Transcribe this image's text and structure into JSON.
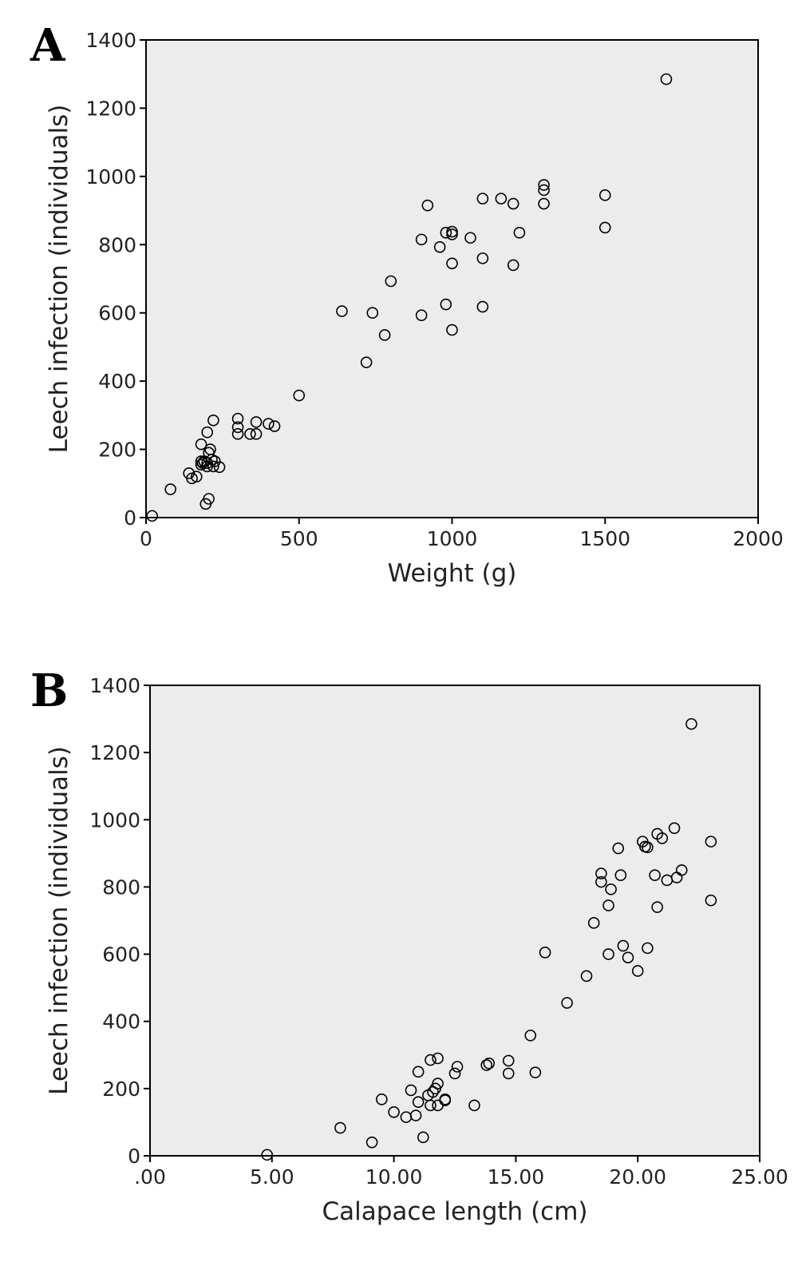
{
  "chart_data": [
    {
      "type": "scatter",
      "panel_label": "A",
      "xlabel": "Weight (g)",
      "ylabel": "Leech infection (individuals)",
      "xlim": [
        0,
        2000
      ],
      "ylim": [
        0,
        1400
      ],
      "xticks": [
        0,
        500,
        1000,
        1500,
        2000
      ],
      "xtick_labels": [
        "0",
        "500",
        "1000",
        "1500",
        "2000"
      ],
      "yticks": [
        0,
        200,
        400,
        600,
        800,
        1000,
        1200,
        1400
      ],
      "ytick_labels": [
        "0",
        "200",
        "400",
        "600",
        "800",
        "1000",
        "1200",
        "1400"
      ],
      "grid": false,
      "points": [
        [
          20,
          5
        ],
        [
          80,
          83
        ],
        [
          140,
          130
        ],
        [
          150,
          115
        ],
        [
          165,
          120
        ],
        [
          180,
          215
        ],
        [
          180,
          165
        ],
        [
          180,
          155
        ],
        [
          185,
          160
        ],
        [
          190,
          165
        ],
        [
          195,
          40
        ],
        [
          200,
          160
        ],
        [
          200,
          150
        ],
        [
          200,
          250
        ],
        [
          205,
          190
        ],
        [
          205,
          55
        ],
        [
          210,
          200
        ],
        [
          215,
          170
        ],
        [
          220,
          285
        ],
        [
          220,
          150
        ],
        [
          225,
          165
        ],
        [
          240,
          148
        ],
        [
          300,
          290
        ],
        [
          300,
          265
        ],
        [
          300,
          245
        ],
        [
          340,
          245
        ],
        [
          360,
          245
        ],
        [
          360,
          280
        ],
        [
          400,
          275
        ],
        [
          420,
          268
        ],
        [
          500,
          358
        ],
        [
          640,
          605
        ],
        [
          720,
          455
        ],
        [
          740,
          600
        ],
        [
          780,
          535
        ],
        [
          800,
          693
        ],
        [
          900,
          593
        ],
        [
          900,
          815
        ],
        [
          920,
          915
        ],
        [
          960,
          793
        ],
        [
          980,
          625
        ],
        [
          980,
          835
        ],
        [
          1000,
          830
        ],
        [
          1000,
          838
        ],
        [
          1000,
          745
        ],
        [
          1000,
          550
        ],
        [
          1060,
          820
        ],
        [
          1100,
          935
        ],
        [
          1100,
          760
        ],
        [
          1100,
          618
        ],
        [
          1160,
          935
        ],
        [
          1200,
          920
        ],
        [
          1200,
          740
        ],
        [
          1220,
          835
        ],
        [
          1300,
          975
        ],
        [
          1300,
          960
        ],
        [
          1300,
          920
        ],
        [
          1500,
          945
        ],
        [
          1500,
          850
        ],
        [
          1700,
          1285
        ]
      ]
    },
    {
      "type": "scatter",
      "panel_label": "B",
      "xlabel": "Calapace length (cm)",
      "ylabel": "Leech infection (individuals)",
      "xlim": [
        0,
        25
      ],
      "ylim": [
        0,
        1400
      ],
      "xticks": [
        0,
        5,
        10,
        15,
        20,
        25
      ],
      "xtick_labels": [
        ".00",
        "5.00",
        "10.00",
        "15.00",
        "20.00",
        "25.00"
      ],
      "yticks": [
        0,
        200,
        400,
        600,
        800,
        1000,
        1200,
        1400
      ],
      "ytick_labels": [
        "0",
        "200",
        "400",
        "600",
        "800",
        "1000",
        "1200",
        "1400"
      ],
      "grid": false,
      "points": [
        [
          4.8,
          3
        ],
        [
          7.8,
          83
        ],
        [
          9.1,
          40
        ],
        [
          9.5,
          168
        ],
        [
          10.0,
          130
        ],
        [
          10.5,
          115
        ],
        [
          10.7,
          195
        ],
        [
          10.9,
          120
        ],
        [
          11.0,
          250
        ],
        [
          11.0,
          160
        ],
        [
          11.2,
          55
        ],
        [
          11.4,
          180
        ],
        [
          11.5,
          285
        ],
        [
          11.5,
          150
        ],
        [
          11.6,
          190
        ],
        [
          11.7,
          200
        ],
        [
          11.8,
          215
        ],
        [
          11.8,
          290
        ],
        [
          11.8,
          150
        ],
        [
          12.1,
          165
        ],
        [
          12.1,
          168
        ],
        [
          12.5,
          245
        ],
        [
          12.6,
          265
        ],
        [
          13.3,
          150
        ],
        [
          13.8,
          270
        ],
        [
          13.9,
          275
        ],
        [
          14.7,
          283
        ],
        [
          14.7,
          245
        ],
        [
          15.6,
          358
        ],
        [
          15.8,
          248
        ],
        [
          16.2,
          605
        ],
        [
          17.1,
          455
        ],
        [
          17.9,
          535
        ],
        [
          18.2,
          693
        ],
        [
          18.5,
          840
        ],
        [
          18.5,
          815
        ],
        [
          18.8,
          745
        ],
        [
          18.8,
          600
        ],
        [
          18.9,
          793
        ],
        [
          19.2,
          915
        ],
        [
          19.3,
          835
        ],
        [
          19.4,
          625
        ],
        [
          19.6,
          590
        ],
        [
          20.0,
          550
        ],
        [
          20.2,
          935
        ],
        [
          20.3,
          920
        ],
        [
          20.4,
          918
        ],
        [
          20.4,
          618
        ],
        [
          20.7,
          835
        ],
        [
          20.8,
          958
        ],
        [
          20.8,
          740
        ],
        [
          21.0,
          945
        ],
        [
          21.2,
          820
        ],
        [
          21.5,
          975
        ],
        [
          21.6,
          828
        ],
        [
          21.8,
          850
        ],
        [
          22.2,
          1285
        ],
        [
          23.0,
          935
        ],
        [
          23.0,
          760
        ]
      ]
    }
  ]
}
